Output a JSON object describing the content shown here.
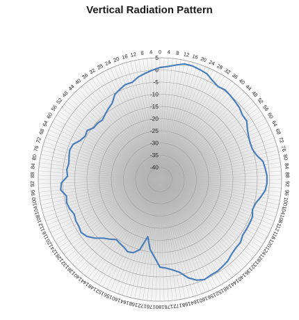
{
  "chart_data": {
    "type": "radar",
    "title": "Vertical Radiation Pattern",
    "angle_start": 0,
    "angle_end": 180,
    "angle_step": 4,
    "angle_direction": "bipolar-left-right (0 at top, 180 at bottom, labels mirrored on both sides)",
    "ring_values": [
      5,
      0,
      -5,
      -10,
      -15,
      -20,
      -25,
      -30,
      -35,
      -40
    ],
    "r_min": -45,
    "r_max": 5,
    "grid": true,
    "legend": "none",
    "line_color": "#4a7ebb",
    "series": [
      {
        "side": "right",
        "points": [
          [
            0,
            1
          ],
          [
            4,
            1.5
          ],
          [
            8,
            2.5
          ],
          [
            12,
            3.5
          ],
          [
            16,
            3.5
          ],
          [
            20,
            3
          ],
          [
            24,
            2.5
          ],
          [
            28,
            1
          ],
          [
            32,
            0
          ],
          [
            36,
            0.5
          ],
          [
            40,
            0
          ],
          [
            44,
            -0.5
          ],
          [
            48,
            -1
          ],
          [
            52,
            -2
          ],
          [
            56,
            -2
          ],
          [
            60,
            -3.5
          ],
          [
            64,
            -4.5
          ],
          [
            68,
            -5
          ],
          [
            72,
            -5
          ],
          [
            76,
            -4
          ],
          [
            80,
            -2
          ],
          [
            84,
            -1.5
          ],
          [
            88,
            -1
          ],
          [
            92,
            -1
          ],
          [
            96,
            -1.5
          ],
          [
            100,
            -3
          ],
          [
            104,
            -4.5
          ],
          [
            108,
            -5
          ],
          [
            112,
            -4
          ],
          [
            116,
            -4
          ],
          [
            120,
            -4
          ],
          [
            124,
            -4
          ],
          [
            128,
            -3
          ],
          [
            132,
            -3
          ],
          [
            136,
            -2.5
          ],
          [
            140,
            -1.5
          ],
          [
            144,
            -1
          ],
          [
            148,
            -0.5
          ],
          [
            152,
            -0.5
          ],
          [
            156,
            0
          ],
          [
            160,
            -1
          ],
          [
            164,
            -3
          ],
          [
            168,
            -6
          ],
          [
            172,
            -7.5
          ],
          [
            176,
            -8.5
          ],
          [
            180,
            -9
          ]
        ]
      },
      {
        "side": "left",
        "points": [
          [
            0,
            1
          ],
          [
            4,
            0
          ],
          [
            8,
            -1
          ],
          [
            12,
            -2
          ],
          [
            16,
            -3.5
          ],
          [
            20,
            -3.5
          ],
          [
            24,
            -4.5
          ],
          [
            28,
            -5.5
          ],
          [
            32,
            -8
          ],
          [
            36,
            -9
          ],
          [
            40,
            -10
          ],
          [
            44,
            -11
          ],
          [
            48,
            -10.5
          ],
          [
            52,
            -10.5
          ],
          [
            56,
            -9
          ],
          [
            60,
            -9.5
          ],
          [
            64,
            -8.5
          ],
          [
            68,
            -6.5
          ],
          [
            72,
            -6
          ],
          [
            76,
            -6.5
          ],
          [
            80,
            -7
          ],
          [
            84,
            -6.5
          ],
          [
            88,
            -7
          ],
          [
            92,
            -4.5
          ],
          [
            96,
            -4
          ],
          [
            100,
            -6
          ],
          [
            104,
            -5.5
          ],
          [
            108,
            -6
          ],
          [
            112,
            -7
          ],
          [
            116,
            -6.5
          ],
          [
            120,
            -6.5
          ],
          [
            124,
            -6
          ],
          [
            128,
            -7
          ],
          [
            132,
            -9
          ],
          [
            136,
            -11.5
          ],
          [
            140,
            -13
          ],
          [
            144,
            -14.5
          ],
          [
            148,
            -14
          ],
          [
            152,
            -13.5
          ],
          [
            156,
            -12.5
          ],
          [
            160,
            -13
          ],
          [
            164,
            -15
          ],
          [
            168,
            -21
          ],
          [
            172,
            -16
          ],
          [
            176,
            -13
          ],
          [
            180,
            -9
          ]
        ]
      }
    ]
  }
}
